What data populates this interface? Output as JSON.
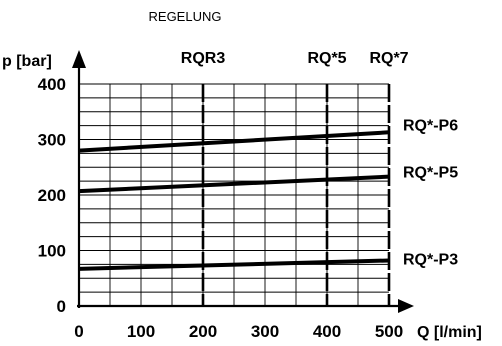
{
  "chart_data": {
    "type": "line",
    "title": "REGELUNG",
    "xlabel": "Q [l/min]",
    "ylabel": "p [bar]",
    "xlim": [
      0,
      500
    ],
    "ylim": [
      0,
      400
    ],
    "x_ticks": [
      0,
      100,
      200,
      300,
      400,
      500
    ],
    "y_ticks": [
      0,
      100,
      200,
      300,
      400
    ],
    "x_minor_step": 50,
    "y_minor_step": 25,
    "grid": true,
    "markers": [
      {
        "label": "RQR3",
        "x": 200
      },
      {
        "label": "RQ*5",
        "x": 400
      },
      {
        "label": "RQ*7",
        "x": 500
      }
    ],
    "series": [
      {
        "name": "RQ*-P6",
        "x": [
          0,
          500
        ],
        "y": [
          280,
          313
        ]
      },
      {
        "name": "RQ*-P5",
        "x": [
          0,
          500
        ],
        "y": [
          207,
          233
        ]
      },
      {
        "name": "RQ*-P3",
        "x": [
          0,
          500
        ],
        "y": [
          67,
          82
        ]
      }
    ],
    "colors": {
      "lines": "#000000",
      "grid": "#000000",
      "background": "#ffffff"
    }
  }
}
